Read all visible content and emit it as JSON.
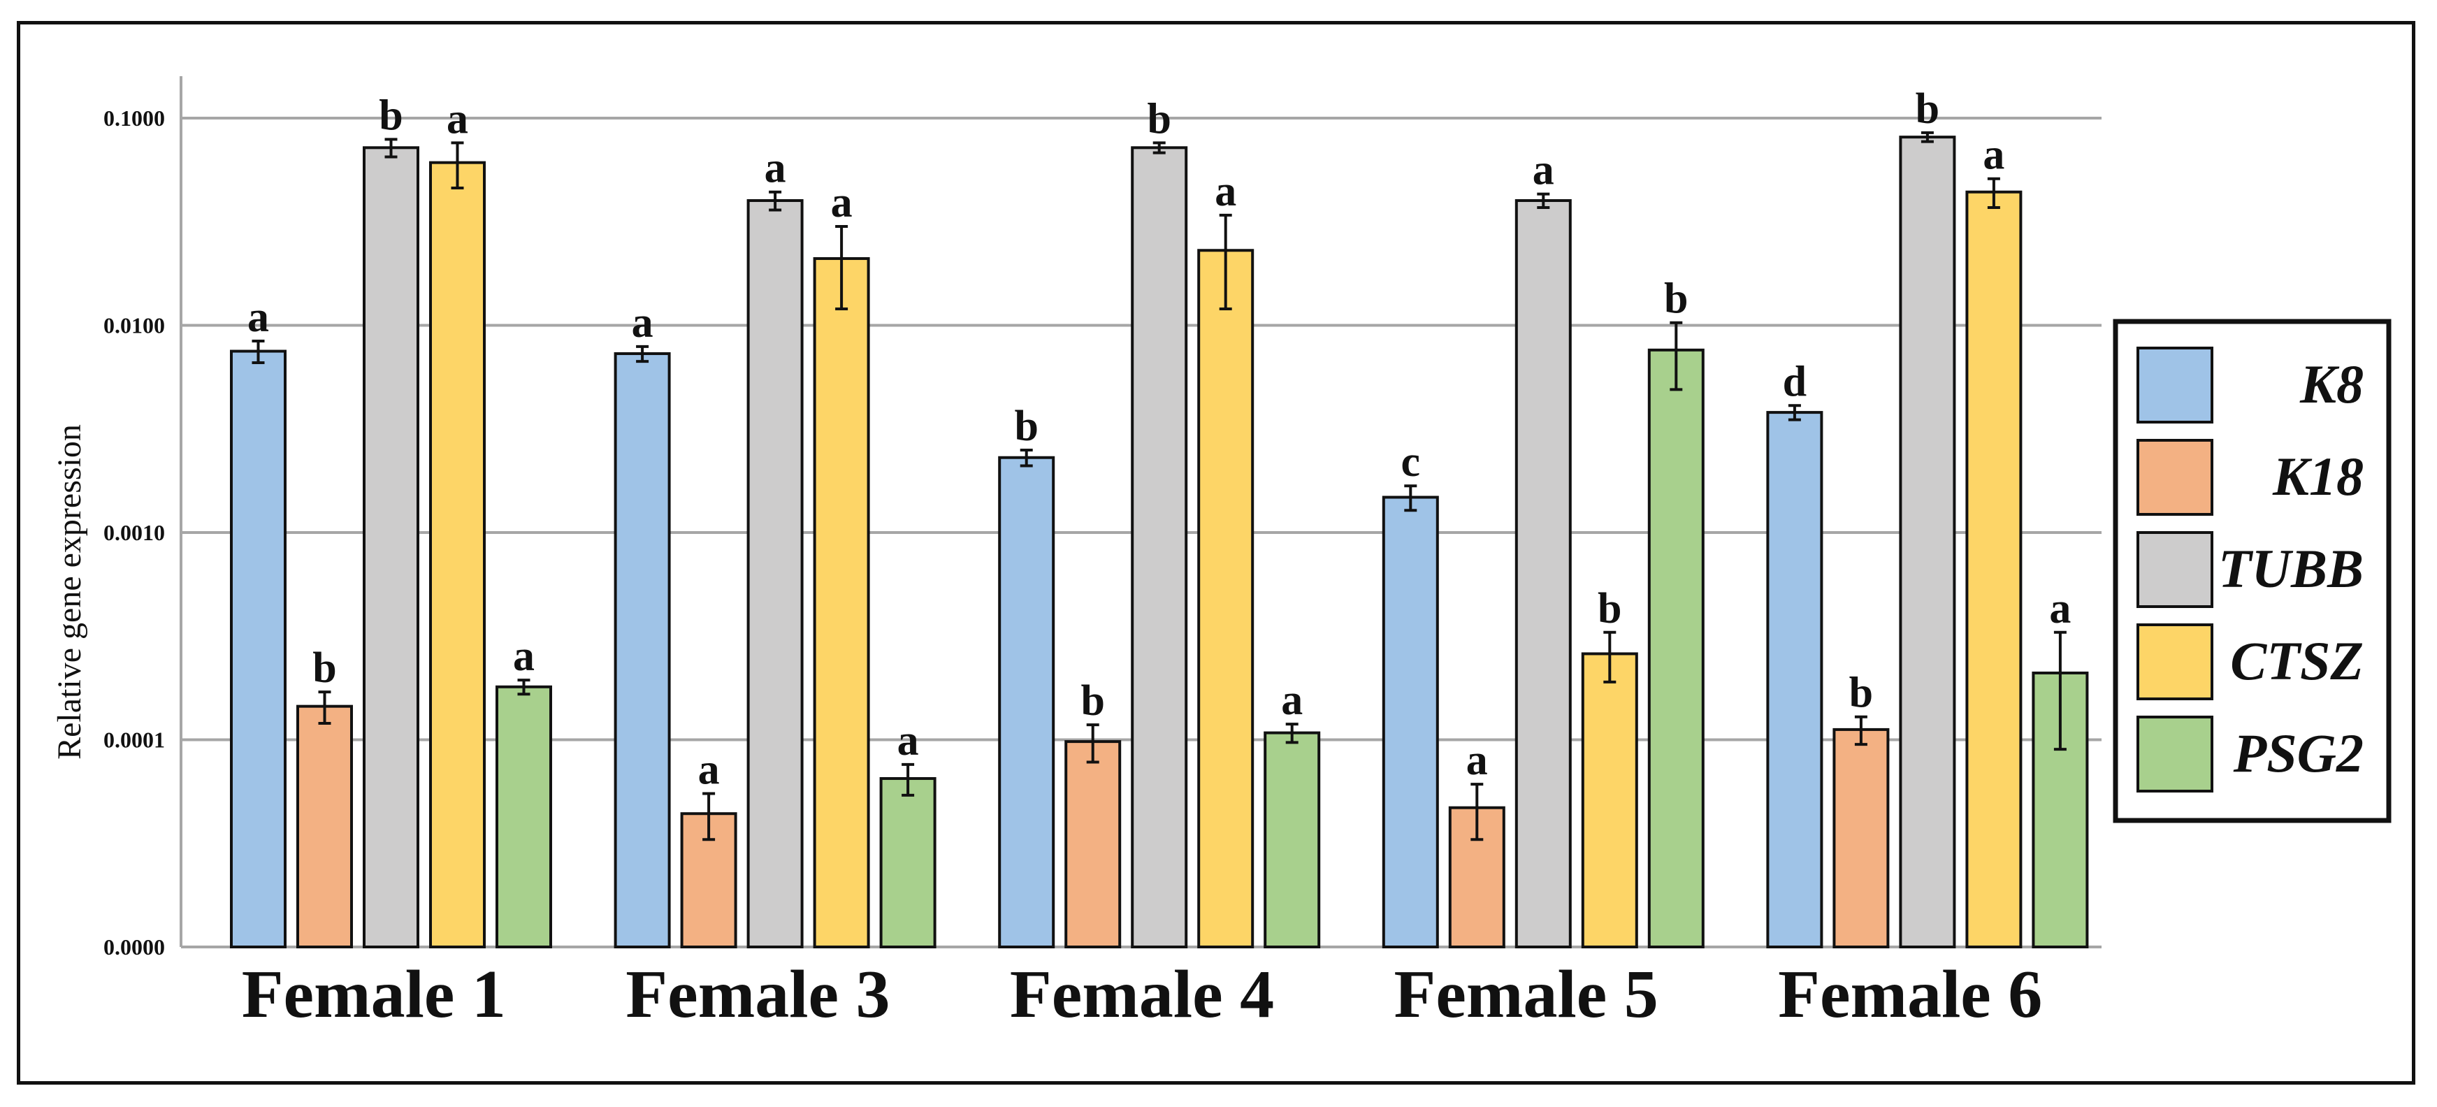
{
  "colors": {
    "K8": "#9fc3e7",
    "K18": "#f3b183",
    "TUBB": "#cdcccc",
    "CTSZ": "#fdd567",
    "PSG2": "#a8d08d",
    "grid": "#a6a6a6",
    "axis": "#111111"
  },
  "chart_data": {
    "type": "bar",
    "title": "",
    "xlabel": "",
    "ylabel": "Relative gene expression",
    "yscale": "log",
    "ylim": [
      1e-05,
      0.1
    ],
    "yticks": [
      {
        "value": 1e-05,
        "label": "0.0000"
      },
      {
        "value": 0.0001,
        "label": "0.0001"
      },
      {
        "value": 0.001,
        "label": "0.0010"
      },
      {
        "value": 0.01,
        "label": "0.0100"
      },
      {
        "value": 0.1,
        "label": "0.1000"
      }
    ],
    "grid": true,
    "legend_position": "right",
    "categories": [
      "Female 1",
      "Female 3",
      "Female 4",
      "Female 5",
      "Female 6"
    ],
    "series": [
      {
        "name": "K8",
        "values": [
          0.0075,
          0.0073,
          0.0023,
          0.00148,
          0.0038
        ],
        "errors": [
          0.0009,
          0.0006,
          0.0002,
          0.0002,
          0.0003
        ],
        "letters": [
          "a",
          "a",
          "b",
          "c",
          "d"
        ]
      },
      {
        "name": "K18",
        "values": [
          0.000145,
          4.4e-05,
          9.8e-05,
          4.7e-05,
          0.000112
        ],
        "errors": [
          2.5e-05,
          1.1e-05,
          2e-05,
          1.4e-05,
          1.7e-05
        ],
        "letters": [
          "b",
          "a",
          "b",
          "a",
          "b"
        ]
      },
      {
        "name": "TUBB",
        "values": [
          0.072,
          0.04,
          0.072,
          0.04,
          0.081
        ],
        "errors": [
          0.007,
          0.004,
          0.004,
          0.003,
          0.004
        ],
        "letters": [
          "b",
          "a",
          "b",
          "a",
          "b"
        ]
      },
      {
        "name": "CTSZ",
        "values": [
          0.061,
          0.021,
          0.023,
          0.00026,
          0.044
        ],
        "errors": [
          0.015,
          0.009,
          0.011,
          7e-05,
          0.007
        ],
        "letters": [
          "a",
          "a",
          "a",
          "b",
          "a"
        ]
      },
      {
        "name": "PSG2",
        "values": [
          0.00018,
          6.5e-05,
          0.000108,
          0.0076,
          0.00021
        ],
        "errors": [
          1.4e-05,
          1.1e-05,
          1.1e-05,
          0.0027,
          0.00012
        ],
        "letters": [
          "a",
          "a",
          "a",
          "b",
          "a"
        ]
      }
    ]
  }
}
